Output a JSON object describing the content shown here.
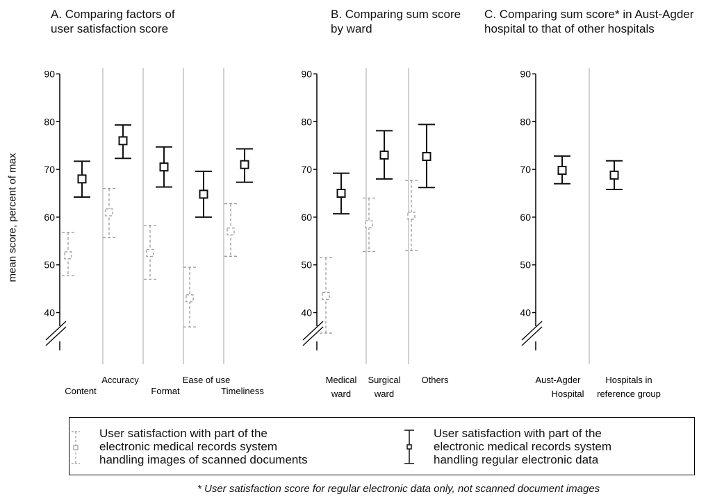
{
  "panel_titles": [
    "A. Comparing factors of\n     user satisfaction score",
    "B. Comparing sum score\n     by ward",
    "C. Comparing sum score* in Aust-Agder\n     hospital to that of other hospitals"
  ],
  "ylabel": "mean score, percent of max",
  "legend": {
    "scanned_label": "User satisfaction with part of the\nelectronic medical records system\nhandling images of scanned documents",
    "electronic_label": "User satisfaction with part of the\nelectronic medical records system\nhandling regular electronic data"
  },
  "footnote": "* User satisfaction score for regular electronic data only, not scanned document images",
  "colors": {
    "electronic": "#111111",
    "scanned": "#9a9a9a",
    "divider": "#b5b5b5"
  },
  "chart_data": [
    {
      "type": "errorbar",
      "title": "A. Comparing factors of user satisfaction score",
      "ylabel": "mean score, percent of max",
      "ylim": [
        40,
        90
      ],
      "yticks": [
        40,
        50,
        60,
        70,
        80,
        90
      ],
      "axis_break": true,
      "categories": [
        "Content",
        "Accuracy",
        "Format",
        "Ease of use",
        "Timeliness"
      ],
      "series": [
        {
          "name": "User satisfaction with part of the electronic medical records system handling images of scanned documents",
          "style": "dashed",
          "mean": [
            52,
            61,
            52.5,
            43,
            57
          ],
          "lower": [
            47.7,
            55.7,
            47,
            37,
            51.8
          ],
          "upper": [
            56.8,
            66,
            58.3,
            49.5,
            62.8
          ]
        },
        {
          "name": "User satisfaction with part of the electronic medical records system handling regular electronic data",
          "style": "solid",
          "mean": [
            68,
            76,
            70.5,
            64.8,
            71
          ],
          "lower": [
            64.2,
            72.3,
            66.3,
            60,
            67.3
          ],
          "upper": [
            71.7,
            79.3,
            74.7,
            69.6,
            74.3
          ]
        }
      ]
    },
    {
      "type": "errorbar",
      "title": "B. Comparing sum score by ward",
      "ylim": [
        40,
        90
      ],
      "yticks": [
        40,
        50,
        60,
        70,
        80,
        90
      ],
      "axis_break": true,
      "categories": [
        "Medical ward",
        "Surgical ward",
        "Others"
      ],
      "series": [
        {
          "name": "User satisfaction with part of the electronic medical records system handling images of scanned documents",
          "style": "dashed",
          "mean": [
            43.5,
            58.5,
            60.3
          ],
          "lower": [
            35.7,
            52.8,
            53
          ],
          "upper": [
            51.5,
            64,
            67.7
          ]
        },
        {
          "name": "User satisfaction with part of the electronic medical records system handling regular electronic data",
          "style": "solid",
          "mean": [
            65,
            73,
            72.7
          ],
          "lower": [
            60.7,
            68,
            66.2
          ],
          "upper": [
            69.2,
            78.1,
            79.4
          ]
        }
      ]
    },
    {
      "type": "errorbar",
      "title": "C. Comparing sum score* in Aust-Agder hospital to that of other hospitals",
      "ylim": [
        40,
        90
      ],
      "yticks": [
        40,
        50,
        60,
        70,
        80,
        90
      ],
      "axis_break": true,
      "categories": [
        "Aust-Agder Hospital",
        "Hospitals in reference group"
      ],
      "series": [
        {
          "name": "User satisfaction with part of the electronic medical records system handling regular electronic data",
          "style": "solid",
          "mean": [
            69.8,
            68.8
          ],
          "lower": [
            67,
            65.8
          ],
          "upper": [
            72.8,
            71.8
          ]
        }
      ]
    }
  ]
}
